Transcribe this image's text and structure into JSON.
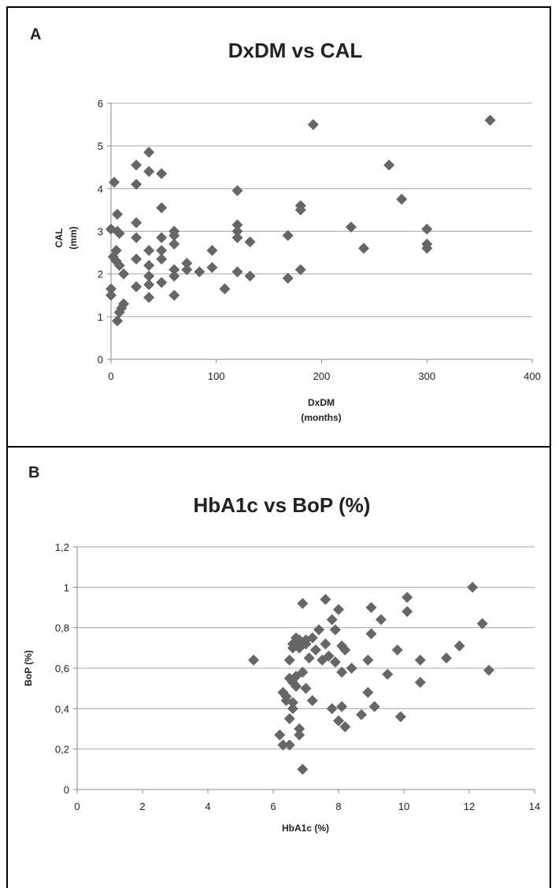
{
  "chart_data": [
    {
      "type": "scatter",
      "panel_letter": "A",
      "title": "DxDM vs CAL",
      "xlabel": "DxDM",
      "xlabel_unit": "(months)",
      "ylabel": "CAL",
      "ylabel_unit": "(mm)",
      "xlim": [
        0,
        400
      ],
      "ylim": [
        0,
        6
      ],
      "xticks": [
        0,
        100,
        200,
        300,
        400
      ],
      "yticks": [
        0,
        1,
        2,
        3,
        4,
        5,
        6
      ],
      "xtick_labels": [
        "0",
        "100",
        "200",
        "300",
        "400"
      ],
      "ytick_labels": [
        "0",
        "1",
        "2",
        "3",
        "4",
        "5",
        "6"
      ],
      "grid": "horizontal",
      "marker_color": "#666666",
      "points": [
        [
          0,
          1.65
        ],
        [
          0,
          1.5
        ],
        [
          0,
          3.05
        ],
        [
          2,
          2.4
        ],
        [
          3,
          4.15
        ],
        [
          5,
          2.55
        ],
        [
          5,
          2.3
        ],
        [
          6,
          3.0
        ],
        [
          6,
          3.4
        ],
        [
          8,
          2.2
        ],
        [
          8,
          2.95
        ],
        [
          6,
          0.9
        ],
        [
          8,
          1.1
        ],
        [
          10,
          1.2
        ],
        [
          12,
          1.3
        ],
        [
          12,
          2.0
        ],
        [
          24,
          4.55
        ],
        [
          24,
          4.1
        ],
        [
          24,
          3.2
        ],
        [
          24,
          2.85
        ],
        [
          24,
          2.35
        ],
        [
          24,
          1.7
        ],
        [
          36,
          4.85
        ],
        [
          36,
          4.4
        ],
        [
          36,
          2.55
        ],
        [
          36,
          2.2
        ],
        [
          36,
          1.95
        ],
        [
          36,
          1.75
        ],
        [
          36,
          1.45
        ],
        [
          48,
          4.35
        ],
        [
          48,
          3.55
        ],
        [
          48,
          2.85
        ],
        [
          48,
          2.55
        ],
        [
          48,
          2.35
        ],
        [
          48,
          1.8
        ],
        [
          60,
          3.0
        ],
        [
          60,
          2.9
        ],
        [
          60,
          2.7
        ],
        [
          60,
          2.1
        ],
        [
          60,
          1.95
        ],
        [
          60,
          1.5
        ],
        [
          72,
          2.25
        ],
        [
          72,
          2.1
        ],
        [
          84,
          2.05
        ],
        [
          96,
          2.55
        ],
        [
          96,
          2.15
        ],
        [
          108,
          1.65
        ],
        [
          120,
          3.95
        ],
        [
          120,
          3.15
        ],
        [
          120,
          3.0
        ],
        [
          120,
          2.85
        ],
        [
          120,
          2.05
        ],
        [
          132,
          2.75
        ],
        [
          132,
          1.95
        ],
        [
          168,
          2.9
        ],
        [
          168,
          1.9
        ],
        [
          180,
          3.6
        ],
        [
          180,
          3.5
        ],
        [
          180,
          2.1
        ],
        [
          192,
          5.5
        ],
        [
          228,
          3.1
        ],
        [
          240,
          2.6
        ],
        [
          264,
          4.55
        ],
        [
          276,
          3.75
        ],
        [
          300,
          3.05
        ],
        [
          300,
          2.7
        ],
        [
          300,
          2.6
        ],
        [
          360,
          5.6
        ]
      ]
    },
    {
      "type": "scatter",
      "panel_letter": "B",
      "title": "HbA1c vs BoP (%)",
      "xlabel": "HbA1c (%)",
      "ylabel": "BoP (%)",
      "xlim": [
        0,
        14
      ],
      "ylim": [
        0,
        1.2
      ],
      "xticks": [
        0,
        2,
        4,
        6,
        8,
        10,
        12,
        14
      ],
      "yticks": [
        0,
        0.2,
        0.4,
        0.6,
        0.8,
        1.0,
        1.2
      ],
      "xtick_labels": [
        "0",
        "2",
        "4",
        "6",
        "8",
        "10",
        "12",
        "14"
      ],
      "ytick_labels": [
        "0",
        "0,2",
        "0,4",
        "0,6",
        "0,8",
        "1",
        "1,2"
      ],
      "grid": "horizontal",
      "marker_color": "#666666",
      "points": [
        [
          5.4,
          0.64
        ],
        [
          6.2,
          0.27
        ],
        [
          6.3,
          0.48
        ],
        [
          6.3,
          0.22
        ],
        [
          6.4,
          0.46
        ],
        [
          6.4,
          0.44
        ],
        [
          6.5,
          0.64
        ],
        [
          6.5,
          0.55
        ],
        [
          6.5,
          0.35
        ],
        [
          6.5,
          0.22
        ],
        [
          6.6,
          0.72
        ],
        [
          6.6,
          0.7
        ],
        [
          6.6,
          0.53
        ],
        [
          6.6,
          0.4
        ],
        [
          6.6,
          0.43
        ],
        [
          6.7,
          0.75
        ],
        [
          6.7,
          0.56
        ],
        [
          6.7,
          0.51
        ],
        [
          6.8,
          0.74
        ],
        [
          6.8,
          0.7
        ],
        [
          6.8,
          0.3
        ],
        [
          6.8,
          0.27
        ],
        [
          6.9,
          0.92
        ],
        [
          6.9,
          0.58
        ],
        [
          6.9,
          0.1
        ],
        [
          7.0,
          0.74
        ],
        [
          7.0,
          0.72
        ],
        [
          7.0,
          0.5
        ],
        [
          7.1,
          0.65
        ],
        [
          7.2,
          0.75
        ],
        [
          7.2,
          0.44
        ],
        [
          7.3,
          0.69
        ],
        [
          7.4,
          0.79
        ],
        [
          7.5,
          0.64
        ],
        [
          7.6,
          0.94
        ],
        [
          7.6,
          0.72
        ],
        [
          7.7,
          0.66
        ],
        [
          7.8,
          0.84
        ],
        [
          7.8,
          0.4
        ],
        [
          7.9,
          0.79
        ],
        [
          7.9,
          0.63
        ],
        [
          8.0,
          0.89
        ],
        [
          8.0,
          0.34
        ],
        [
          8.1,
          0.41
        ],
        [
          8.1,
          0.71
        ],
        [
          8.1,
          0.58
        ],
        [
          8.2,
          0.31
        ],
        [
          8.2,
          0.69
        ],
        [
          8.4,
          0.6
        ],
        [
          8.7,
          0.37
        ],
        [
          8.9,
          0.64
        ],
        [
          8.9,
          0.48
        ],
        [
          9.0,
          0.9
        ],
        [
          9.0,
          0.77
        ],
        [
          9.1,
          0.41
        ],
        [
          9.3,
          0.84
        ],
        [
          9.5,
          0.57
        ],
        [
          9.8,
          0.69
        ],
        [
          9.9,
          0.36
        ],
        [
          10.1,
          0.95
        ],
        [
          10.1,
          0.88
        ],
        [
          10.5,
          0.64
        ],
        [
          10.5,
          0.53
        ],
        [
          11.3,
          0.65
        ],
        [
          11.7,
          0.71
        ],
        [
          12.1,
          1.0
        ],
        [
          12.4,
          0.82
        ],
        [
          12.6,
          0.59
        ]
      ]
    }
  ]
}
